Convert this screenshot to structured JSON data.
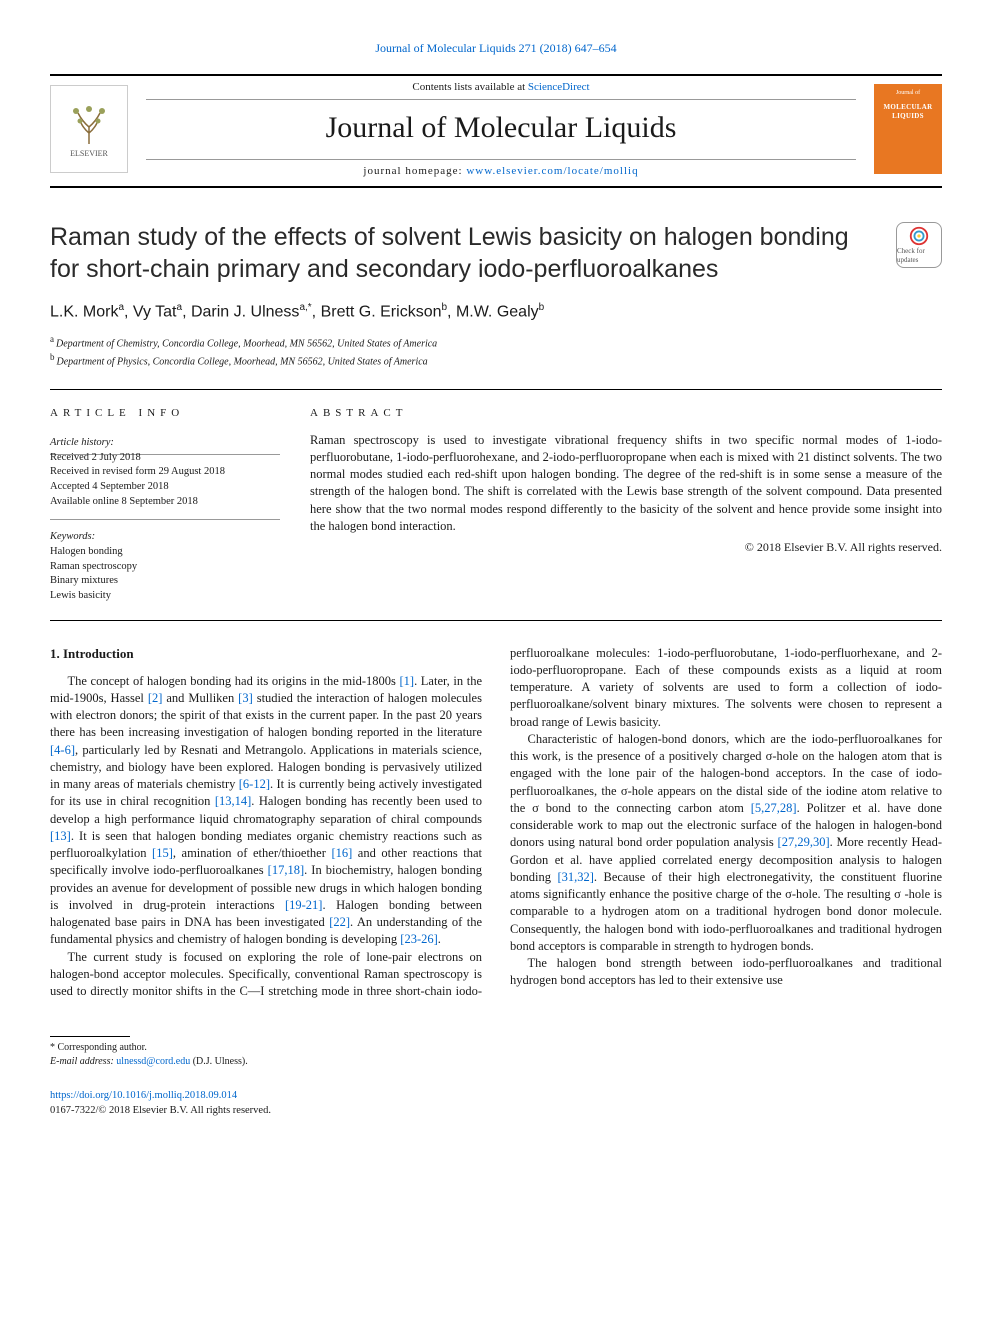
{
  "banner": {
    "citation_prefix": "Journal of Molecular Liquids 271 (2018) 647–654"
  },
  "header": {
    "contents_prefix": "Contents lists available at ",
    "contents_link": "ScienceDirect",
    "journal_name": "Journal of Molecular Liquids",
    "homepage_prefix": "journal homepage: ",
    "homepage_url": "www.elsevier.com/locate/molliq",
    "publisher_logo_label": "ELSEVIER",
    "cover_top": "Journal of",
    "cover_main": "MOLECULAR LIQUIDS"
  },
  "article": {
    "title": "Raman study of the effects of solvent Lewis basicity on halogen bonding for short-chain primary and secondary iodo-perfluoroalkanes",
    "crossmark_label": "Check for updates",
    "authors_html": "L.K. Mork<sup>a</sup>, Vy Tat<sup>a</sup>, Darin J. Ulness<sup>a,*</sup>, Brett G. Erickson<sup>b</sup>, M.W. Gealy<sup>b</sup>",
    "affiliations": [
      {
        "label": "a",
        "text": "Department of Chemistry, Concordia College, Moorhead, MN 56562, United States of America"
      },
      {
        "label": "b",
        "text": "Department of Physics, Concordia College, Moorhead, MN 56562, United States of America"
      }
    ]
  },
  "info": {
    "section_label": "ARTICLE INFO",
    "history_label": "Article history:",
    "history": [
      "Received 2 July 2018",
      "Received in revised form 29 August 2018",
      "Accepted 4 September 2018",
      "Available online 8 September 2018"
    ],
    "keywords_label": "Keywords:",
    "keywords": [
      "Halogen bonding",
      "Raman spectroscopy",
      "Binary mixtures",
      "Lewis basicity"
    ]
  },
  "abstract": {
    "section_label": "ABSTRACT",
    "text": "Raman spectroscopy is used to investigate vibrational frequency shifts in two specific normal modes of 1-iodo-perfluorobutane, 1-iodo-perfluorohexane, and 2-iodo-perfluoropropane when each is mixed with 21 distinct solvents. The two normal modes studied each red-shift upon halogen bonding. The degree of the red-shift is in some sense a measure of the strength of the halogen bond. The shift is correlated with the Lewis base strength of the solvent compound. Data presented here show that the two normal modes respond differently to the basicity of the solvent and hence provide some insight into the halogen bond interaction.",
    "copyright": "© 2018 Elsevier B.V. All rights reserved."
  },
  "body": {
    "intro_heading": "1. Introduction",
    "paragraphs": [
      "The concept of halogen bonding had its origins in the mid-1800s [1]. Later, in the mid-1900s, Hassel [2] and Mulliken [3] studied the interaction of halogen molecules with electron donors; the spirit of that exists in the current paper. In the past 20 years there has been increasing investigation of halogen bonding reported in the literature [4-6], particularly led by Resnati and Metrangolo. Applications in materials science, chemistry, and biology have been explored. Halogen bonding is pervasively utilized in many areas of materials chemistry [6-12]. It is currently being actively investigated for its use in chiral recognition [13,14]. Halogen bonding has recently been used to develop a high performance liquid chromatography separation of chiral compounds [13]. It is seen that halogen bonding mediates organic chemistry reactions such as perfluoroalkylation [15], amination of ether/thioether [16] and other reactions that specifically involve iodo-perfluoroalkanes [17,18]. In biochemistry, halogen bonding provides an avenue for development of possible new drugs in which halogen bonding is involved in drug-protein interactions [19-21]. Halogen bonding between halogenated base pairs in DNA has been investigated [22]. An understanding of the fundamental physics and chemistry of halogen bonding is developing [23-26].",
      "The current study is focused on exploring the role of lone-pair electrons on halogen-bond acceptor molecules. Specifically, conventional Raman spectroscopy is used to directly monitor shifts in the C—I stretching mode in three short-chain iodo-perfluoroalkane molecules: 1-iodo-perfluorobutane, 1-iodo-perfluorhexane, and 2-iodo-perfluoropropane. Each of these compounds exists as a liquid at room temperature. A variety of solvents are used to form a collection of iodo-perfluoroalkane/solvent binary mixtures. The solvents were chosen to represent a broad range of Lewis basicity.",
      "Characteristic of halogen-bond donors, which are the iodo-perfluoroalkanes for this work, is the presence of a positively charged σ-hole on the halogen atom that is engaged with the lone pair of the halogen-bond acceptors. In the case of iodo-perfluoroalkanes, the σ-hole appears on the distal side of the iodine atom relative to the σ bond to the connecting carbon atom [5,27,28]. Politzer et al. have done considerable work to map out the electronic surface of the halogen in halogen-bond donors using natural bond order population analysis [27,29,30]. More recently Head-Gordon et al. have applied correlated energy decomposition analysis to halogen bonding [31,32]. Because of their high electronegativity, the constituent fluorine atoms significantly enhance the positive charge of the σ-hole. The resulting σ -hole is comparable to a hydrogen atom on a traditional hydrogen bond donor molecule. Consequently, the halogen bond with iodo-perfluoroalkanes and traditional hydrogen bond acceptors is comparable in strength to hydrogen bonds.",
      "The halogen bond strength between iodo-perfluoroalkanes and traditional hydrogen bond acceptors has led to their extensive use"
    ]
  },
  "footer": {
    "corresponding_label": "* Corresponding author.",
    "email_label": "E-mail address: ",
    "email": "ulnessd@cord.edu",
    "email_name": " (D.J. Ulness).",
    "doi": "https://doi.org/10.1016/j.molliq.2018.09.014",
    "issn_line": "0167-7322/© 2018 Elsevier B.V. All rights reserved."
  },
  "colors": {
    "link": "#0066cc",
    "cover_bg": "#e87722",
    "rule": "#000000",
    "light_rule": "#999999"
  }
}
